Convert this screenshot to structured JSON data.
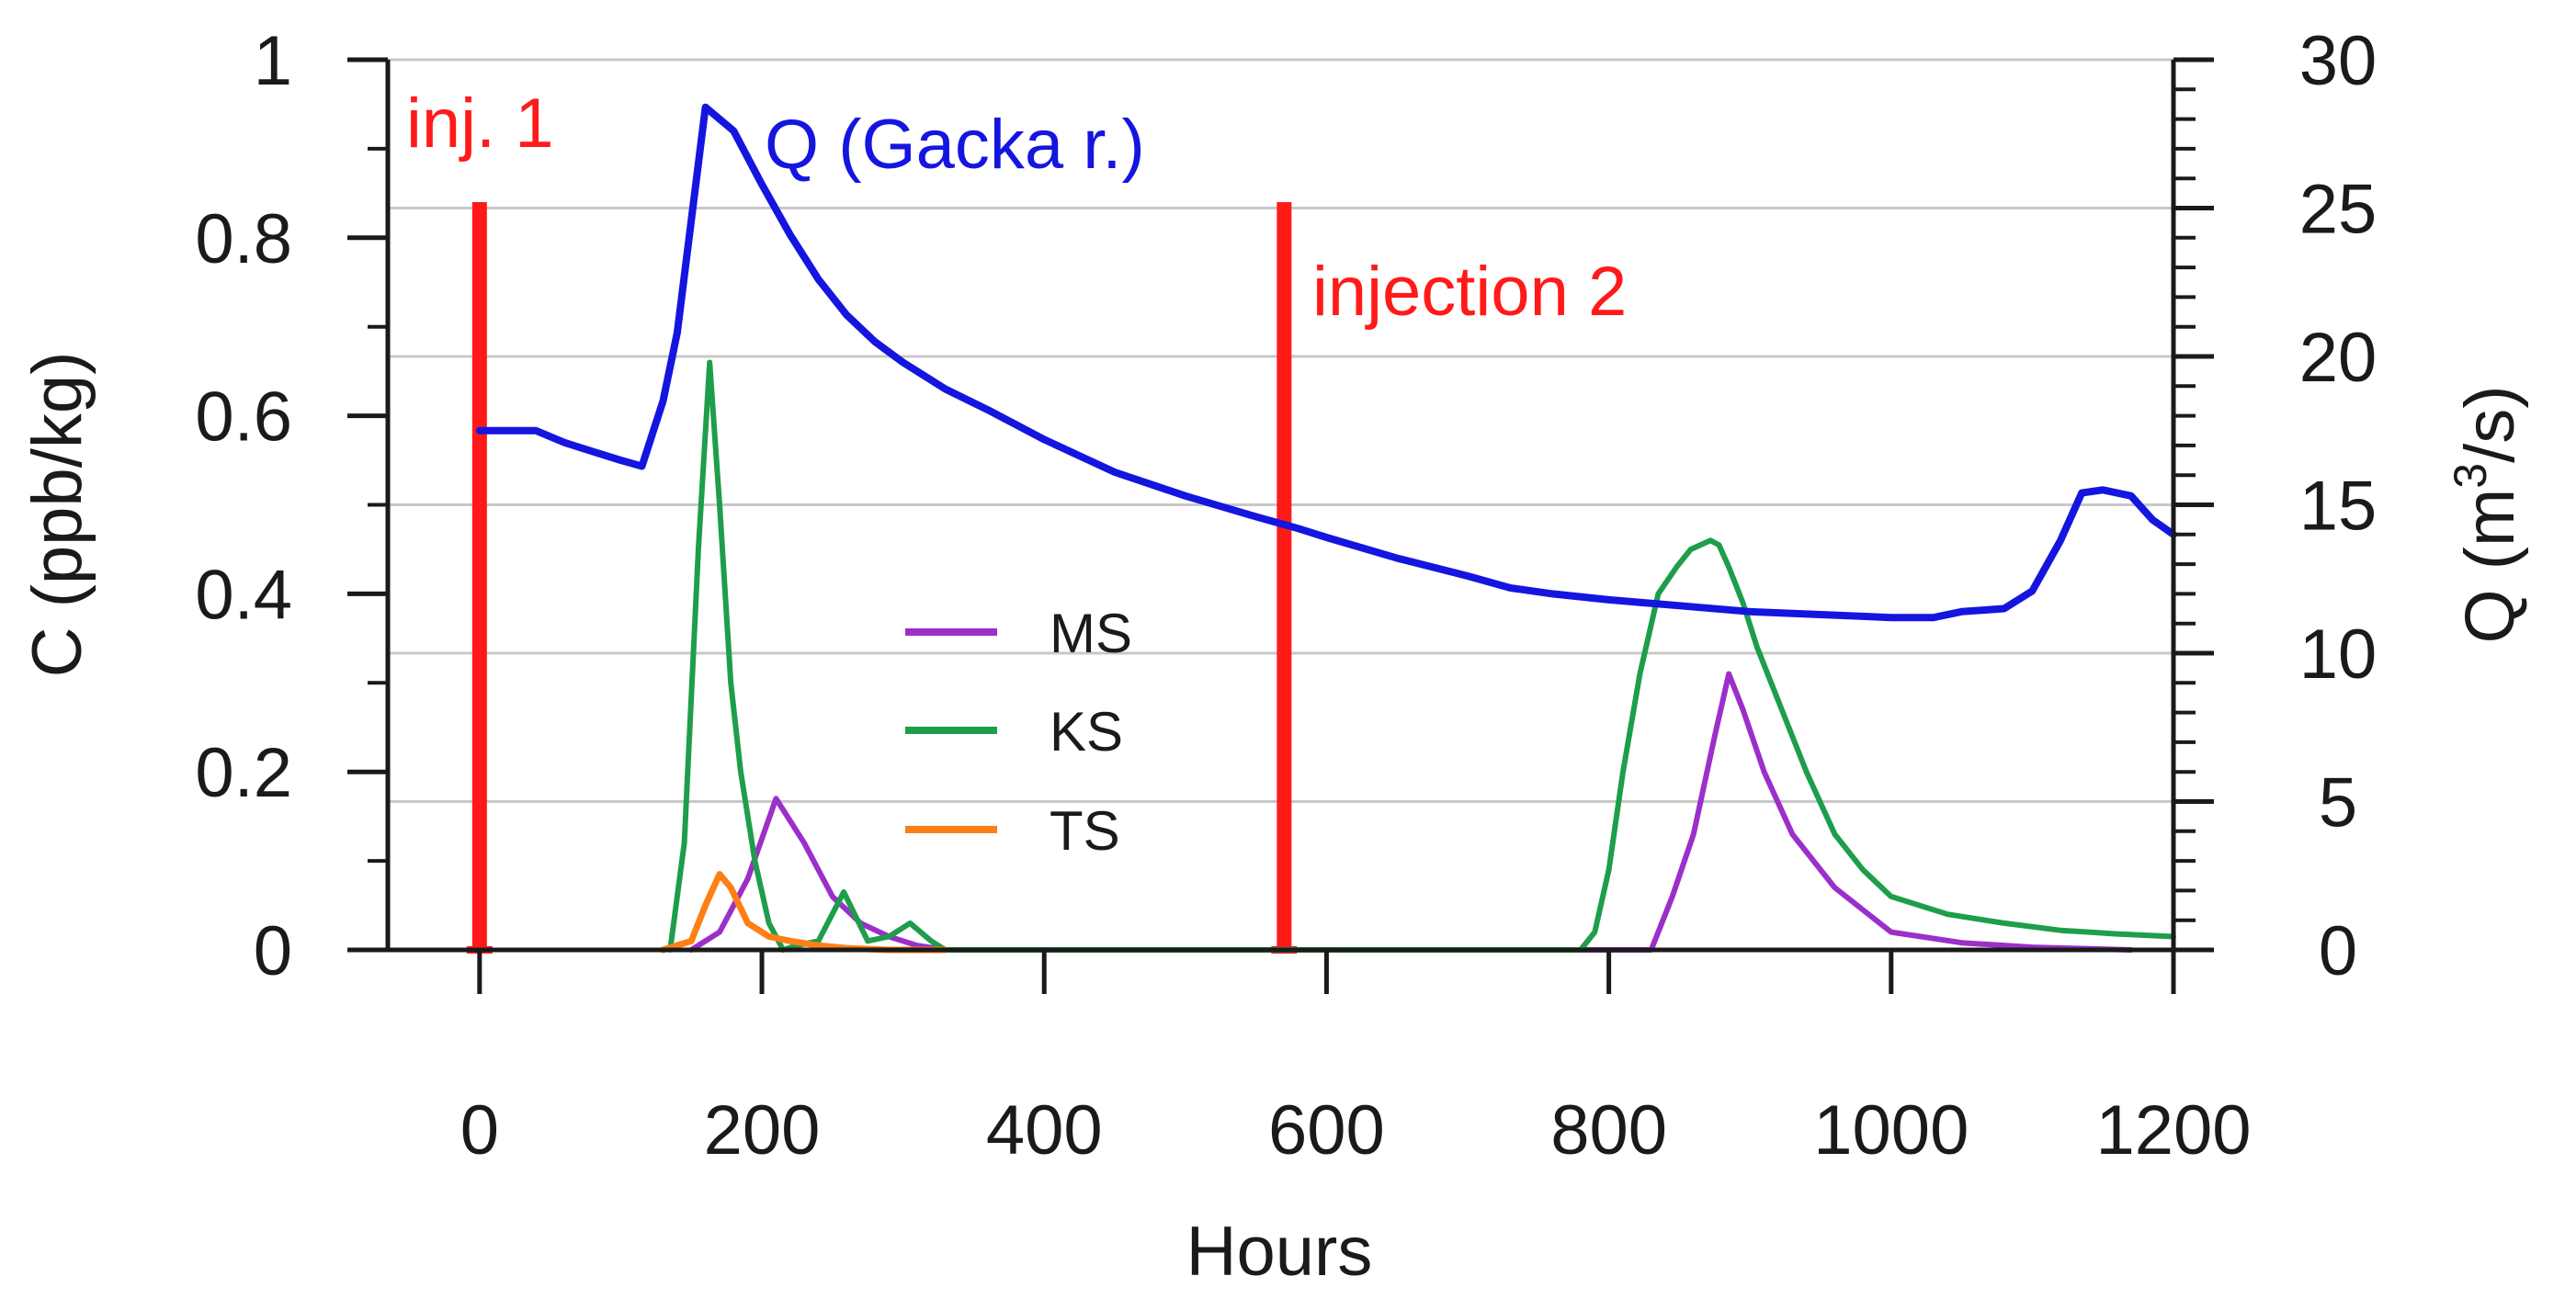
{
  "chart_data": {
    "type": "line",
    "xlabel": "Hours",
    "ylabel_left": "C (ppb/kg)",
    "ylabel_right_base": "Q (m",
    "ylabel_right_sup": "3",
    "ylabel_right_tail": "/s)",
    "x_ticks": [
      0,
      200,
      400,
      600,
      800,
      1000,
      1200
    ],
    "x_tick_labels": [
      "0",
      "200",
      "400",
      "600",
      "800",
      "1000",
      "1200"
    ],
    "xlim": [
      -65,
      1200
    ],
    "y_left_ticks": [
      0,
      0.2,
      0.4,
      0.6,
      0.8,
      1
    ],
    "y_left_tick_labels": [
      "0",
      "0.2",
      "0.4",
      "0.6",
      "0.8",
      "1"
    ],
    "ylim_left": [
      0,
      1
    ],
    "y_right_ticks": [
      0,
      5,
      10,
      15,
      20,
      25,
      30
    ],
    "y_right_tick_labels": [
      "0",
      "5",
      "10",
      "15",
      "20",
      "25",
      "30"
    ],
    "ylim_right": [
      0,
      30
    ],
    "grid": "horizontal",
    "colors": {
      "MS": "#9b2fc9",
      "KS": "#1e9e4a",
      "TS": "#ff7f17",
      "Q": "#1515e0",
      "injection": "#ff1a1a",
      "grid": "#c8c8c8",
      "axis": "#1a1a1a"
    },
    "legend": {
      "position": "center",
      "entries": [
        "MS",
        "KS",
        "TS"
      ]
    },
    "series": [
      {
        "name": "MS",
        "axis": "left",
        "x": [
          150,
          170,
          190,
          210,
          230,
          250,
          270,
          290,
          310,
          330,
          830,
          845,
          860,
          875,
          885,
          895,
          910,
          930,
          960,
          1000,
          1050,
          1100,
          1170
        ],
        "values": [
          0,
          0.02,
          0.08,
          0.17,
          0.12,
          0.06,
          0.03,
          0.015,
          0.005,
          0,
          0,
          0.06,
          0.13,
          0.24,
          0.31,
          0.27,
          0.2,
          0.13,
          0.07,
          0.02,
          0.008,
          0.003,
          0
        ]
      },
      {
        "name": "KS",
        "axis": "left",
        "x": [
          135,
          145,
          155,
          163,
          170,
          178,
          185,
          195,
          205,
          215,
          225,
          240,
          258,
          275,
          290,
          305,
          320,
          330,
          780,
          790,
          800,
          810,
          822,
          835,
          848,
          858,
          865,
          872,
          878,
          885,
          895,
          905,
          920,
          940,
          960,
          980,
          1000,
          1040,
          1080,
          1120,
          1160,
          1200
        ],
        "values": [
          0,
          0.12,
          0.45,
          0.66,
          0.5,
          0.3,
          0.2,
          0.1,
          0.03,
          0,
          0.005,
          0.01,
          0.065,
          0.01,
          0.015,
          0.03,
          0.01,
          0,
          0,
          0.02,
          0.09,
          0.2,
          0.31,
          0.4,
          0.43,
          0.45,
          0.455,
          0.46,
          0.455,
          0.43,
          0.39,
          0.34,
          0.28,
          0.2,
          0.13,
          0.09,
          0.06,
          0.04,
          0.03,
          0.022,
          0.018,
          0.015
        ]
      },
      {
        "name": "TS",
        "axis": "left",
        "x": [
          130,
          150,
          160,
          170,
          178,
          190,
          205,
          220,
          240,
          260,
          290,
          330
        ],
        "values": [
          0,
          0.01,
          0.05,
          0.085,
          0.07,
          0.03,
          0.015,
          0.01,
          0.005,
          0.002,
          0,
          0
        ]
      },
      {
        "name": "Q (Gacka r.)",
        "axis": "right",
        "x": [
          0,
          20,
          40,
          60,
          80,
          100,
          115,
          130,
          140,
          160,
          180,
          200,
          220,
          240,
          260,
          280,
          300,
          330,
          360,
          400,
          450,
          500,
          550,
          580,
          600,
          650,
          700,
          730,
          760,
          800,
          850,
          900,
          950,
          1000,
          1030,
          1050,
          1080,
          1100,
          1120,
          1135,
          1150,
          1170,
          1185,
          1200
        ],
        "values": [
          17.5,
          17.5,
          17.5,
          17.1,
          16.8,
          16.5,
          16.3,
          18.5,
          20.8,
          28.4,
          27.6,
          25.8,
          24.1,
          22.6,
          21.4,
          20.5,
          19.8,
          18.9,
          18.2,
          17.2,
          16.1,
          15.3,
          14.6,
          14.2,
          13.9,
          13.2,
          12.6,
          12.2,
          12.0,
          11.8,
          11.6,
          11.4,
          11.3,
          11.2,
          11.2,
          11.4,
          11.5,
          12.1,
          13.8,
          15.4,
          15.5,
          15.3,
          14.5,
          14.0
        ]
      }
    ],
    "injections": [
      {
        "x": 0,
        "label": "inj. 1",
        "top_value": 0.84
      },
      {
        "x": 570,
        "label": "injection 2",
        "top_value": 0.84
      }
    ],
    "annotations": [
      {
        "text": "Q (Gacka r.)"
      },
      {
        "text": "inj. 1"
      },
      {
        "text": "injection 2"
      }
    ]
  }
}
